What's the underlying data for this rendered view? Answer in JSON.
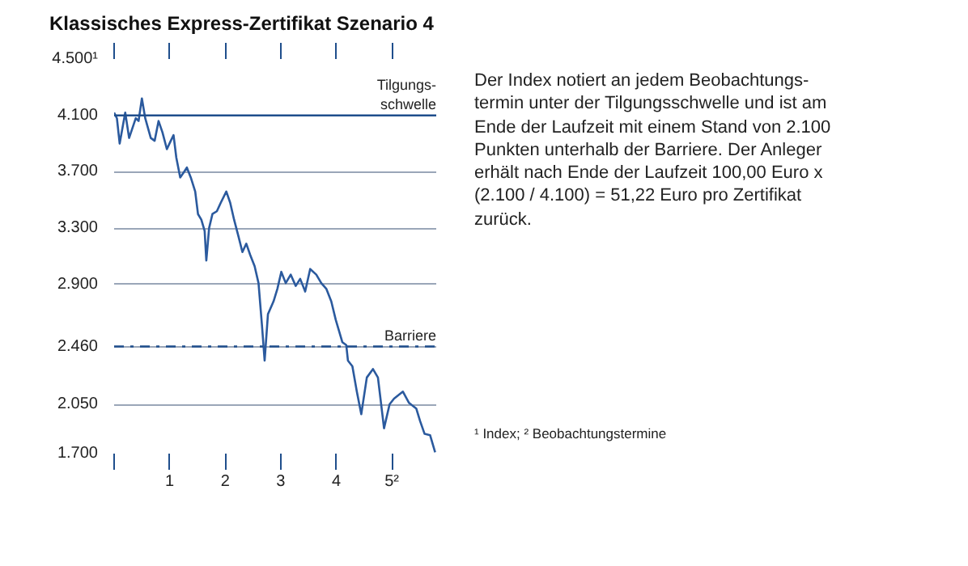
{
  "chart_data": {
    "type": "line",
    "title": "Klassisches Express-Zertifikat Szenario 4",
    "x": [
      0.0,
      0.05,
      0.1,
      0.2,
      0.27,
      0.39,
      0.44,
      0.5,
      0.56,
      0.66,
      0.73,
      0.8,
      0.87,
      0.95,
      1.02,
      1.07,
      1.12,
      1.19,
      1.26,
      1.31,
      1.38,
      1.46,
      1.51,
      1.57,
      1.63,
      1.66,
      1.71,
      1.77,
      1.85,
      1.92,
      2.02,
      2.09,
      2.16,
      2.24,
      2.31,
      2.38,
      2.45,
      2.53,
      2.6,
      2.66,
      2.71,
      2.77,
      2.87,
      2.94,
      3.01,
      3.09,
      3.18,
      3.27,
      3.35,
      3.44,
      3.53,
      3.64,
      3.73,
      3.82,
      3.91,
      3.99,
      4.11,
      4.18,
      4.21,
      4.29,
      4.37,
      4.45,
      4.55,
      4.66,
      4.75,
      4.86,
      4.96,
      5.04,
      5.2,
      5.31,
      5.44,
      5.51,
      5.59,
      5.69,
      5.78
    ],
    "series": [
      {
        "color": "#2b5a9e",
        "values": [
          4120,
          4080,
          3900,
          4120,
          3940,
          4080,
          4060,
          4220,
          4080,
          3940,
          3920,
          4060,
          3980,
          3860,
          3920,
          3960,
          3800,
          3660,
          3700,
          3730,
          3660,
          3560,
          3400,
          3360,
          3280,
          3070,
          3300,
          3400,
          3420,
          3480,
          3560,
          3480,
          3360,
          3240,
          3130,
          3190,
          3110,
          3030,
          2910,
          2620,
          2360,
          2690,
          2780,
          2870,
          2990,
          2910,
          2970,
          2890,
          2940,
          2850,
          3010,
          2970,
          2910,
          2870,
          2780,
          2650,
          2490,
          2470,
          2360,
          2320,
          2140,
          1980,
          2240,
          2300,
          2240,
          1880,
          2050,
          2090,
          2140,
          2060,
          2020,
          1930,
          1840,
          1830,
          1710
        ]
      }
    ],
    "xlim": [
      0,
      5.8
    ],
    "ylim": [
      1700,
      4500
    ],
    "xticks": [
      {
        "value": 0,
        "label": null
      },
      1,
      2,
      3,
      4,
      {
        "value": 5,
        "label": "5²"
      }
    ],
    "yticks": [
      {
        "value": 4500,
        "label": "4.500¹"
      },
      {
        "value": 4100,
        "label": "4.100"
      },
      {
        "value": 3700,
        "label": "3.700"
      },
      {
        "value": 3300,
        "label": "3.300"
      },
      {
        "value": 2900,
        "label": "2.900"
      },
      {
        "value": 2460,
        "label": "2.460"
      },
      {
        "value": 2050,
        "label": "2.050"
      },
      {
        "value": 1700,
        "label": "1.700"
      }
    ],
    "ref_lines": [
      {
        "axis": "y",
        "value": 4100,
        "label": "Tilgungs-\nschwelle",
        "color": "#1f4e8c",
        "line_style": "solid"
      },
      {
        "axis": "y",
        "value": 2460,
        "label": "Barriere",
        "color": "#1f4e8c",
        "line_style": "dashdot"
      }
    ],
    "annotations": [
      "Der Index notiert an jedem Beobachtungs-\ntermin unter der Tilgungsschwelle und ist am\nEnde der Laufzeit mit einem Stand von 2.100\nPunkten unterhalb der Barriere. Der Anleger\nerhält nach Ende der Laufzeit 100,00 Euro x\n(2.100 / 4.100) = 51,22 Euro pro Zertifikat\nzurück.",
      "¹ Index; ² Beobachtungstermine"
    ],
    "grid": "y",
    "line_style": "solid",
    "marker": "none"
  }
}
